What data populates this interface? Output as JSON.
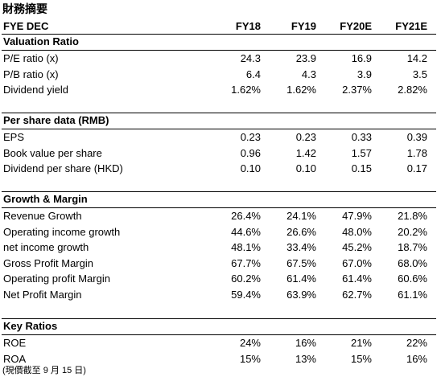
{
  "title": "財務摘要",
  "header": {
    "label": "FYE DEC",
    "columns": [
      "FY18",
      "FY19",
      "FY20E",
      "FY21E"
    ]
  },
  "sections": [
    {
      "title": "Valuation Ratio",
      "rows": [
        {
          "label": "P/E ratio (x)",
          "values": [
            "24.3",
            "23.9",
            "16.9",
            "14.2"
          ]
        },
        {
          "label": "P/B ratio (x)",
          "values": [
            "6.4",
            "4.3",
            "3.9",
            "3.5"
          ]
        },
        {
          "label": "Dividend yield",
          "values": [
            "1.62%",
            "1.62%",
            "2.37%",
            "2.82%"
          ]
        }
      ]
    },
    {
      "title": "Per share data (RMB)",
      "rows": [
        {
          "label": "EPS",
          "values": [
            "0.23",
            "0.23",
            "0.33",
            "0.39"
          ]
        },
        {
          "label": "Book value per share",
          "values": [
            "0.96",
            "1.42",
            "1.57",
            "1.78"
          ]
        },
        {
          "label": "Dividend per share (HKD)",
          "values": [
            "0.10",
            "0.10",
            "0.15",
            "0.17"
          ]
        }
      ]
    },
    {
      "title": "Growth & Margin",
      "rows": [
        {
          "label": "Revenue Growth",
          "values": [
            "26.4%",
            "24.1%",
            "47.9%",
            "21.8%"
          ]
        },
        {
          "label": "Operating income growth",
          "values": [
            "44.6%",
            "26.6%",
            "48.0%",
            "20.2%"
          ]
        },
        {
          "label": "net income growth",
          "values": [
            "48.1%",
            "33.4%",
            "45.2%",
            "18.7%"
          ]
        },
        {
          "label": "Gross Profit Margin",
          "values": [
            "67.7%",
            "67.5%",
            "67.0%",
            "68.0%"
          ]
        },
        {
          "label": "Operating profit Margin",
          "values": [
            "60.2%",
            "61.4%",
            "61.4%",
            "60.6%"
          ]
        },
        {
          "label": "Net Profit Margin",
          "values": [
            "59.4%",
            "63.9%",
            "62.7%",
            "61.1%"
          ]
        }
      ]
    },
    {
      "title": "Key Ratios",
      "rows": [
        {
          "label": "ROE",
          "values": [
            "24%",
            "16%",
            "21%",
            "22%"
          ]
        },
        {
          "label": "ROA",
          "values": [
            "15%",
            "13%",
            "15%",
            "16%"
          ]
        }
      ]
    }
  ],
  "footnote": "(現價截至 9 月 15 日)"
}
